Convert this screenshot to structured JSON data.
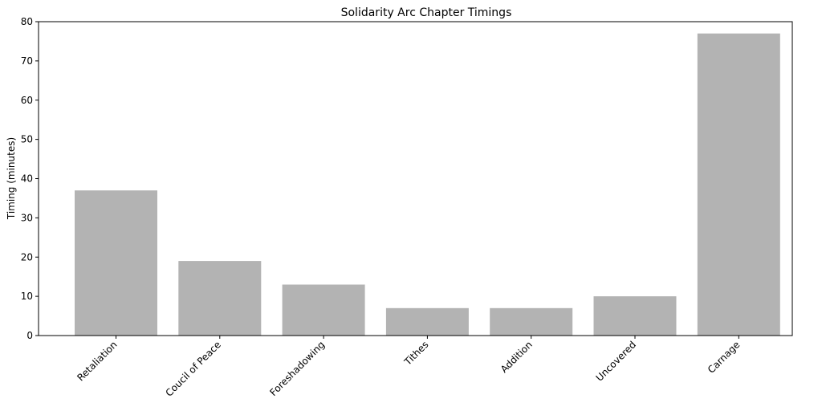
{
  "chart_data": {
    "type": "bar",
    "title": "Solidarity Arc Chapter Timings",
    "xlabel": "",
    "ylabel": "Timing (minutes)",
    "categories": [
      "Retaliation",
      "Coucil of Peace",
      "Foreshadowing",
      "Tithes",
      "Addition",
      "Uncovered",
      "Carnage"
    ],
    "values": [
      37,
      19,
      13,
      7,
      7,
      10,
      77
    ],
    "ylim": [
      0,
      80
    ],
    "yticks": [
      "0",
      "10",
      "20",
      "30",
      "40",
      "50",
      "60",
      "70",
      "80"
    ],
    "bar_color": "#b3b3b3",
    "grid": false,
    "legend": "none"
  }
}
